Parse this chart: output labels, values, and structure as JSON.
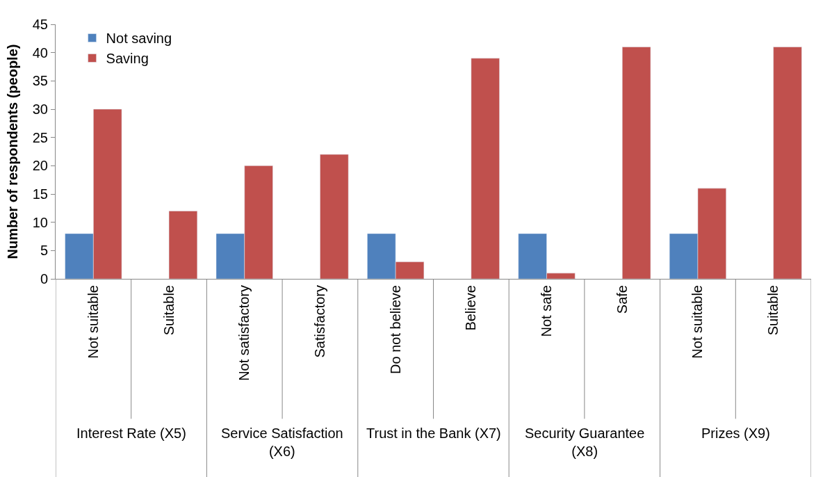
{
  "chart_data": {
    "type": "bar",
    "ylabel": "Number of respondents (people)",
    "categories": [
      "Not suitable",
      "Suitable",
      "Not satisfactory",
      "Satisfactory",
      "Do not believe",
      "Believe",
      "Not safe",
      "Safe",
      "Not suitable",
      "Suitable"
    ],
    "series": [
      {
        "name": "Not saving",
        "color": "#4f81bd",
        "values": [
          8,
          null,
          8,
          null,
          8,
          null,
          8,
          null,
          8,
          null
        ]
      },
      {
        "name": "Saving",
        "color": "#c0504d",
        "values": [
          30,
          12,
          20,
          22,
          3,
          39,
          1,
          41,
          16,
          41
        ]
      }
    ],
    "annotations": [
      "Interest Rate (X5)",
      "Service Satisfaction (X6)",
      "Trust in the Bank (X7)",
      "Security Guarantee (X8)",
      "Prizes (X9)"
    ],
    "ylim": [
      0,
      45
    ],
    "yticks": [
      0,
      5,
      10,
      15,
      20,
      25,
      30,
      35,
      40,
      45
    ],
    "legend": "top left"
  }
}
